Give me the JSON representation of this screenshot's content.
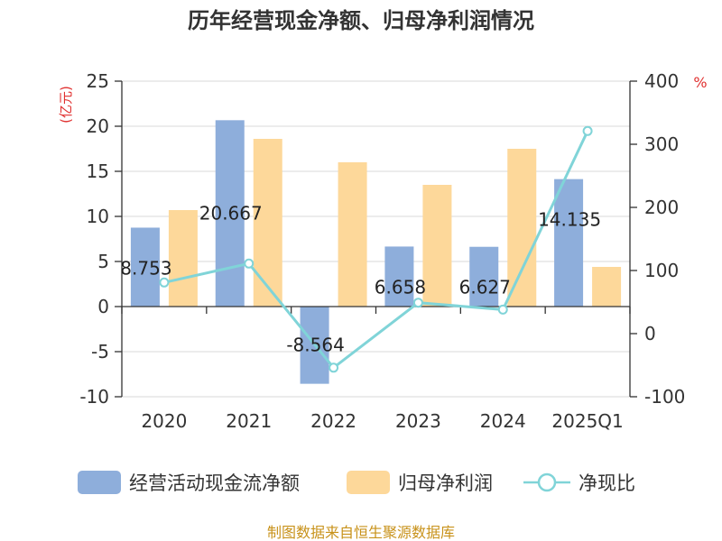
{
  "title": "历年经营现金净额、归母净利润情况",
  "source": "制图数据来自恒生聚源数据库",
  "chart_data": {
    "type": "bar",
    "categories": [
      "2020",
      "2021",
      "2022",
      "2023",
      "2024",
      "2025Q1"
    ],
    "left_axis": {
      "unit": "(亿元)",
      "ylim": [
        -10,
        25
      ],
      "ticks": [
        -10,
        -5,
        0,
        5,
        10,
        15,
        20,
        25
      ]
    },
    "right_axis": {
      "unit": "%",
      "ylim": [
        -100,
        400
      ],
      "ticks": [
        -100,
        0,
        100,
        200,
        300,
        400
      ]
    },
    "series": [
      {
        "name": "经营活动现金流净额",
        "type": "bar",
        "axis": "left",
        "color": "#8eaedb",
        "values": [
          8.753,
          20.667,
          -8.564,
          6.658,
          6.627,
          14.135
        ],
        "labels": [
          "8.753",
          "20.667",
          "-8.564",
          "6.658",
          "6.627",
          "14.135"
        ]
      },
      {
        "name": "归母净利润",
        "type": "bar",
        "axis": "left",
        "color": "#fdd89a",
        "values": [
          10.7,
          18.6,
          16.0,
          13.5,
          17.5,
          4.4
        ]
      },
      {
        "name": "净现比",
        "type": "line",
        "axis": "right",
        "color": "#80d4d8",
        "values": [
          81,
          111,
          -54,
          49,
          38,
          321
        ]
      }
    ],
    "grid": true,
    "legend_position": "bottom"
  }
}
